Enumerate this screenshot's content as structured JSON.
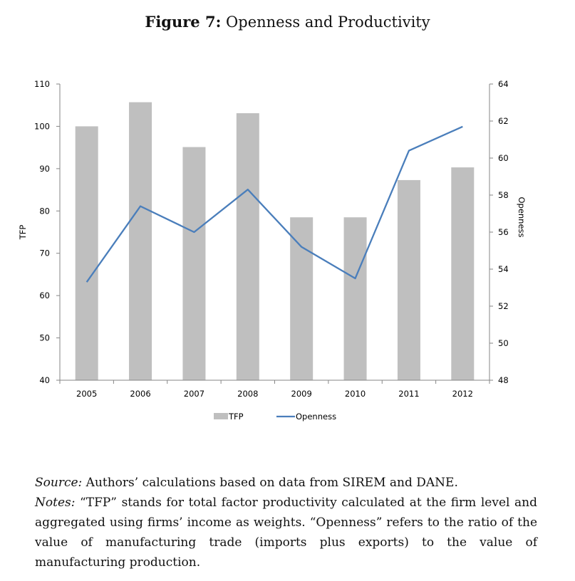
{
  "figure": {
    "label": "Figure 7:",
    "title": "Openness and Productivity"
  },
  "chart_data": {
    "type": "bar+line",
    "categories": [
      "2005",
      "2006",
      "2007",
      "2008",
      "2009",
      "2010",
      "2011",
      "2012"
    ],
    "series": [
      {
        "name": "TFP",
        "type": "bar",
        "axis": "left",
        "color": "#BFBFBF",
        "values": [
          100.0,
          105.7,
          95.1,
          103.1,
          78.5,
          78.5,
          87.3,
          90.3
        ]
      },
      {
        "name": "Openness",
        "type": "line",
        "axis": "right",
        "color": "#4A7EBB",
        "values": [
          53.3,
          57.4,
          56.0,
          58.3,
          55.2,
          53.5,
          60.4,
          61.7
        ]
      }
    ],
    "ylabel": "TFP",
    "ylim": [
      40,
      110
    ],
    "yticks": [
      40,
      50,
      60,
      70,
      80,
      90,
      100,
      110
    ],
    "y2label": "Openness",
    "y2lim": [
      48,
      64
    ],
    "y2ticks": [
      48,
      50,
      52,
      54,
      56,
      58,
      60,
      62,
      64
    ],
    "legend": [
      "TFP",
      "Openness"
    ],
    "legend_position": "bottom"
  },
  "notes": {
    "source_label": "Source:",
    "source_text": " Authors’ calculations based on data from SIREM and DANE.",
    "notes_label": "Notes:",
    "notes_text": " “TFP” stands for total factor productivity calculated at the firm level and aggregated using firms’ income as weights.  “Openness” refers to the ratio of the value of manufacturing trade (imports plus exports) to the value of manufacturing production."
  }
}
